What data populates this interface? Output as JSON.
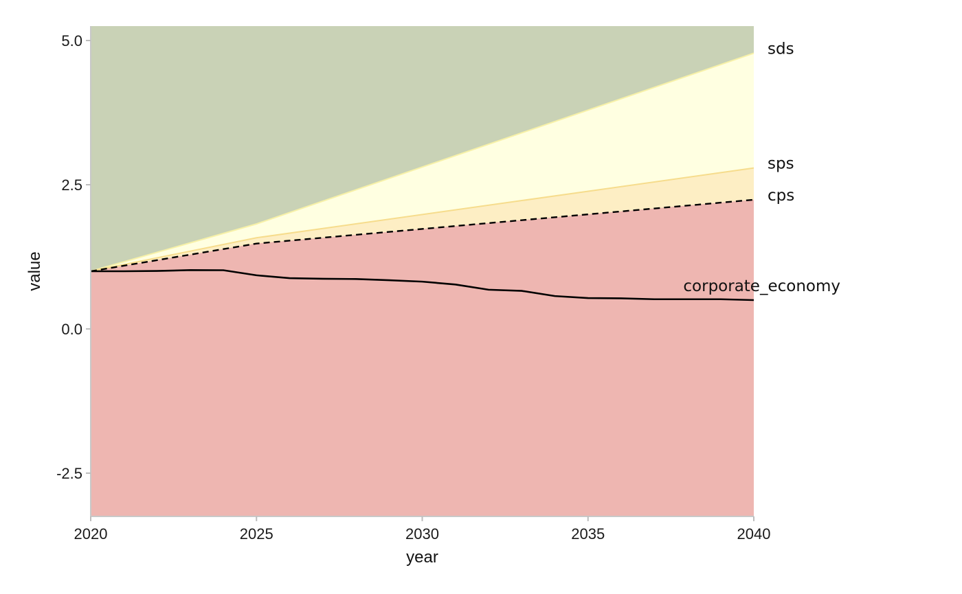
{
  "chart_data": {
    "type": "area",
    "title": "",
    "xlabel": "year",
    "ylabel": "value",
    "xlim": [
      2020,
      2040
    ],
    "ylim": [
      -3.25,
      5.25
    ],
    "x_ticks": [
      {
        "value": 2020,
        "label": "2020"
      },
      {
        "value": 2025,
        "label": "2025"
      },
      {
        "value": 2030,
        "label": "2030"
      },
      {
        "value": 2035,
        "label": "2035"
      },
      {
        "value": 2040,
        "label": "2040"
      }
    ],
    "y_ticks": [
      {
        "value": 5.0,
        "label": "5.0"
      },
      {
        "value": 2.5,
        "label": "2.5"
      },
      {
        "value": 0.0,
        "label": "0.0"
      },
      {
        "value": -2.5,
        "label": "-2.5"
      }
    ],
    "grid": false,
    "bands": [
      {
        "key": "above_sds",
        "color": "#c9d2b6"
      },
      {
        "key": "sds_to_sps",
        "color": "#ffffe1"
      },
      {
        "key": "sps_to_cps",
        "color": "#fdeec4"
      },
      {
        "key": "below_cps",
        "color": "#eeb6b1"
      }
    ],
    "band_edges": [
      {
        "name": "sds",
        "color": "#f7f1a8",
        "x": [
          2020,
          2025,
          2040
        ],
        "y": [
          1.0,
          1.82,
          4.78
        ]
      },
      {
        "name": "sps",
        "color": "#f6dc8c",
        "x": [
          2020,
          2025,
          2040
        ],
        "y": [
          1.0,
          1.58,
          2.79
        ]
      },
      {
        "name": "cps",
        "color": "#000000",
        "dash": true,
        "x": [
          2020,
          2025,
          2040
        ],
        "y": [
          1.0,
          1.48,
          2.24
        ]
      }
    ],
    "series": [
      {
        "name": "corporate_economy",
        "color": "#000000",
        "x": [
          2020,
          2021,
          2022,
          2023,
          2024,
          2025,
          2026,
          2027,
          2028,
          2029,
          2030,
          2031,
          2032,
          2033,
          2034,
          2035,
          2036,
          2037,
          2038,
          2039,
          2040
        ],
        "y": [
          1.0,
          1.0,
          1.005,
          1.02,
          1.018,
          0.93,
          0.88,
          0.87,
          0.865,
          0.845,
          0.82,
          0.77,
          0.68,
          0.66,
          0.57,
          0.535,
          0.53,
          0.515,
          0.515,
          0.515,
          0.5
        ]
      }
    ],
    "labels": [
      {
        "text": "sds",
        "anchor": "sds"
      },
      {
        "text": "sps",
        "anchor": "sps"
      },
      {
        "text": "cps",
        "anchor": "cps"
      },
      {
        "text": "corporate_economy",
        "anchor": "corporate_economy"
      }
    ]
  }
}
